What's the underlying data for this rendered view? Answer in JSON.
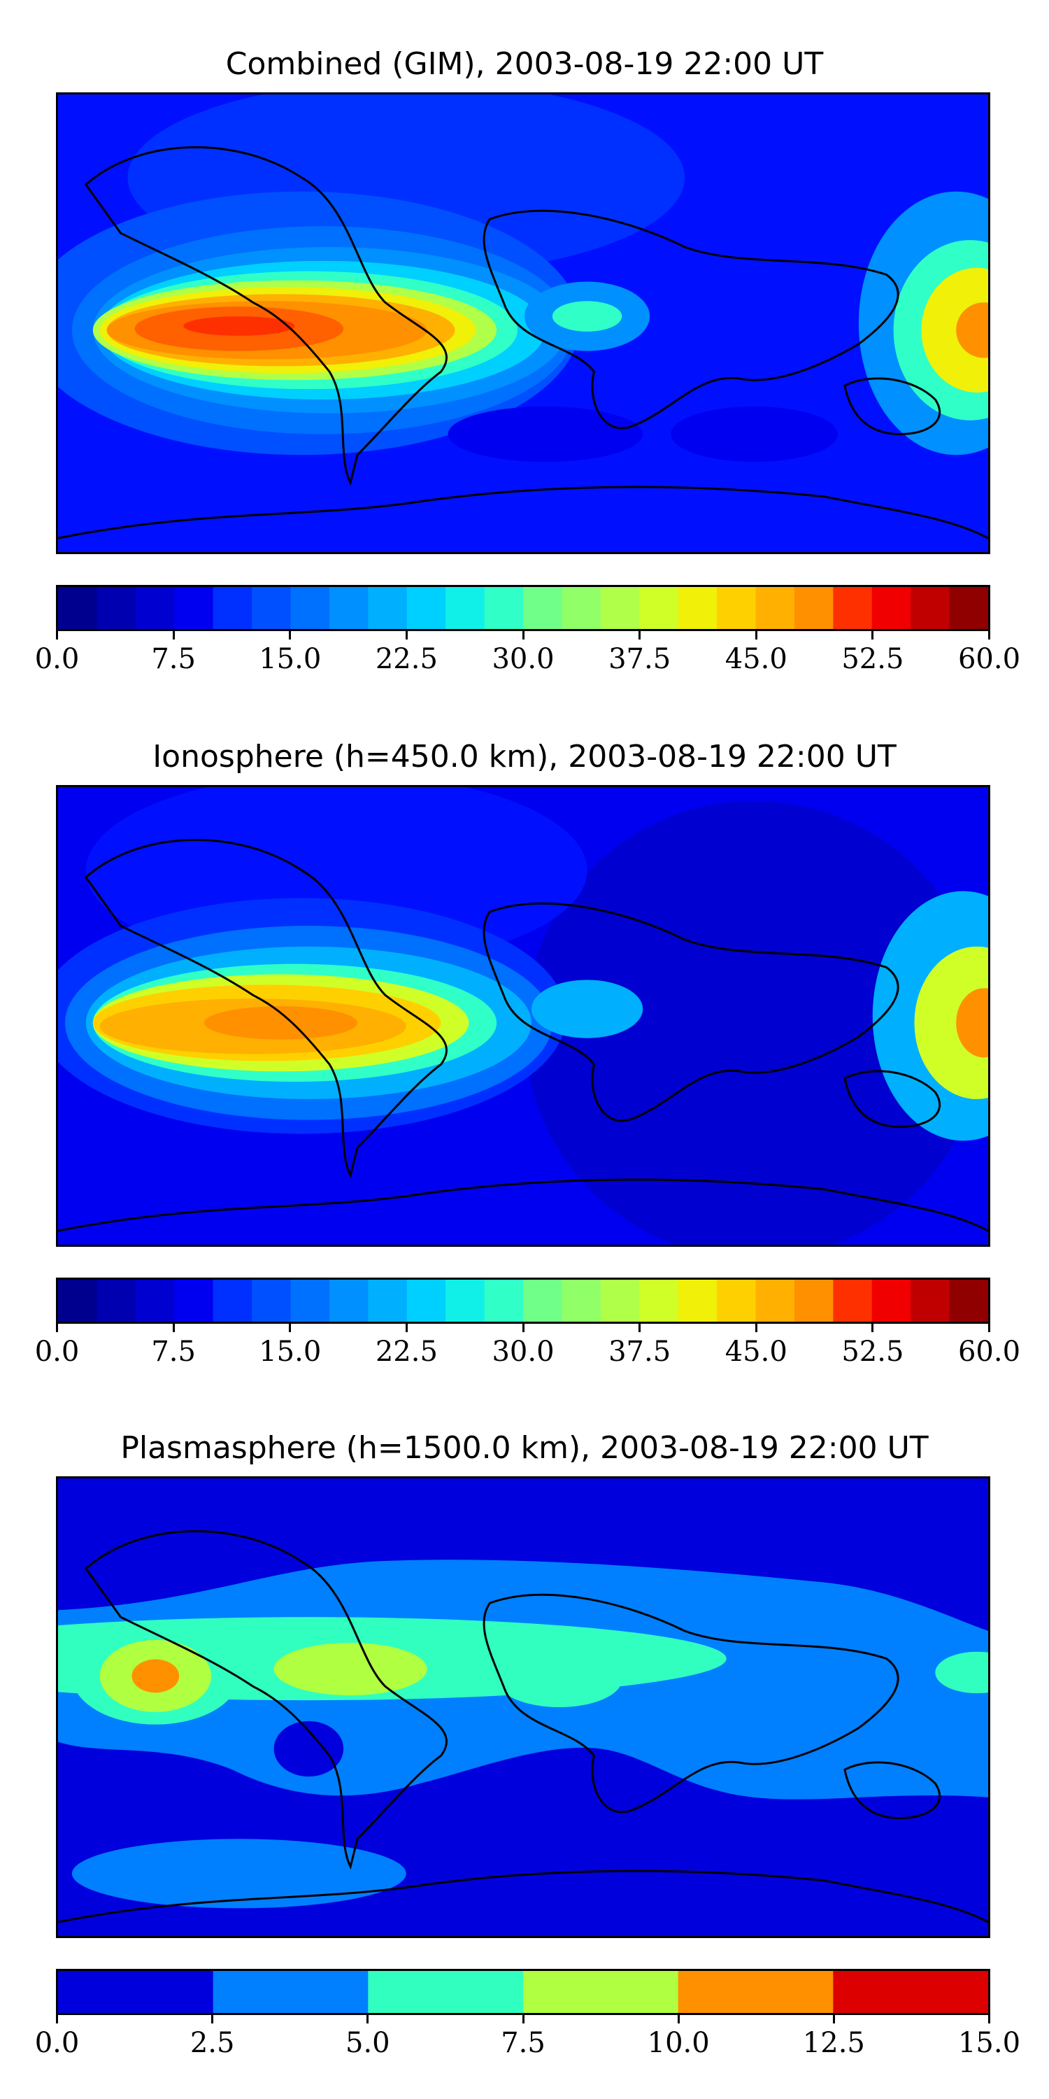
{
  "panels": [
    {
      "title": "Combined (GIM), 2003-08-19 22:00 UT",
      "colorbar": {
        "min": 0,
        "max": 60,
        "step": 2.5,
        "ticks": [
          "0.0",
          "7.5",
          "15.0",
          "22.5",
          "30.0",
          "37.5",
          "45.0",
          "52.5",
          "60.0"
        ],
        "tick_values": [
          0,
          7.5,
          15,
          22.5,
          30,
          37.5,
          45,
          52.5,
          60
        ]
      }
    },
    {
      "title": "Ionosphere  (h=450.0 km), 2003-08-19 22:00 UT",
      "colorbar": {
        "min": 0,
        "max": 60,
        "step": 2.5,
        "ticks": [
          "0.0",
          "7.5",
          "15.0",
          "22.5",
          "30.0",
          "37.5",
          "45.0",
          "52.5",
          "60.0"
        ],
        "tick_values": [
          0,
          7.5,
          15,
          22.5,
          30,
          37.5,
          45,
          52.5,
          60
        ]
      }
    },
    {
      "title": "Plasmasphere (h=1500.0 km), 2003-08-19 22:00 UT",
      "colorbar": {
        "min": 0,
        "max": 15,
        "step": 2.5,
        "ticks": [
          "0.0",
          "2.5",
          "5.0",
          "7.5",
          "10.0",
          "12.5",
          "15.0"
        ],
        "tick_values": [
          0,
          2.5,
          5,
          7.5,
          10,
          12.5,
          15
        ]
      }
    }
  ],
  "colors": {
    "jet24": [
      "#00008f",
      "#0000b0",
      "#0000d0",
      "#0000f0",
      "#0010ff",
      "#0030ff",
      "#0050ff",
      "#0070ff",
      "#0090ff",
      "#00b0ff",
      "#00d0ff",
      "#10f0e8",
      "#30ffc8",
      "#50ffa8",
      "#70ff88",
      "#90ff68",
      "#b0ff48",
      "#d0ff28",
      "#f0f008",
      "#ffd000",
      "#ffb000",
      "#ff9000",
      "#ff6000",
      "#ff3000",
      "#f00000",
      "#c00000",
      "#900000"
    ],
    "jet6": [
      "#0000dd",
      "#0080ff",
      "#30ffc0",
      "#b0ff40",
      "#ff9000",
      "#dd0000"
    ]
  }
}
